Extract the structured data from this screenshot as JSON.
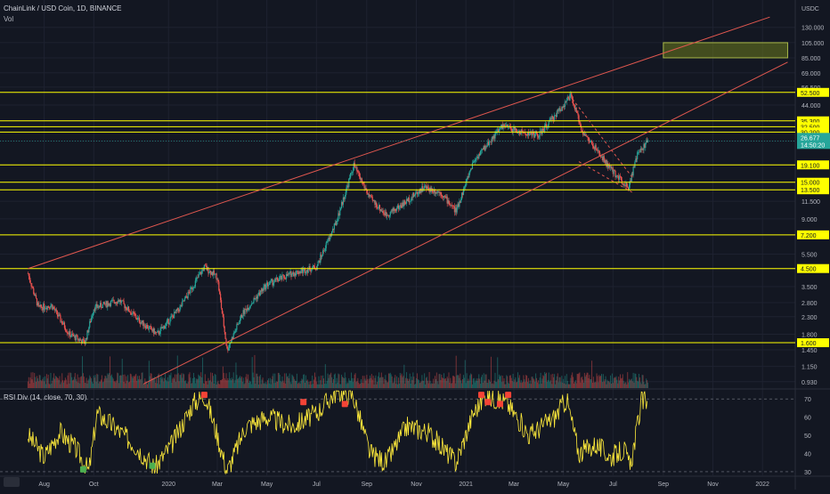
{
  "header": {
    "symbol_line": "ChainLink / USD Coin, 1D, BINANCE",
    "volume_label": "Vol",
    "currency": "USDC"
  },
  "colors": {
    "background": "#131722",
    "grid": "#1e2230",
    "up": "#26a69a",
    "down": "#ef5350",
    "horizontal_levels": "#ffff00",
    "channel": "#e0574f",
    "rsi": "#ffeb3b",
    "price_badge": "#26a69a",
    "target_zone": "#6b7a1e"
  },
  "chart_data": [
    {
      "type": "candlestick",
      "scale": "log",
      "ylim": [
        0.85,
        160
      ],
      "y_ticks": [
        "130.000",
        "105.000",
        "85.000",
        "69.000",
        "56.500",
        "44.000",
        "35.300",
        "30.200",
        "26.677",
        "19.100",
        "15.000",
        "11.500",
        "9.000",
        "7.200",
        "5.500",
        "4.500",
        "3.500",
        "2.800",
        "2.300",
        "1.800",
        "1.450",
        "1.150",
        "0.930"
      ],
      "x_ticks": [
        "Aug",
        "Oct",
        "2020",
        "Mar",
        "May",
        "Jul",
        "Sep",
        "Nov",
        "2021",
        "Mar",
        "May",
        "Jul",
        "Sep",
        "Nov",
        "2022"
      ],
      "date_range": [
        "2019-07-12",
        "2021-08-13"
      ],
      "price_path": [
        {
          "date": "2019-07-12",
          "close": 4.2
        },
        {
          "date": "2019-07-25",
          "close": 2.6
        },
        {
          "date": "2019-08-10",
          "close": 2.7
        },
        {
          "date": "2019-09-01",
          "close": 1.8
        },
        {
          "date": "2019-09-20",
          "close": 1.6
        },
        {
          "date": "2019-10-01",
          "close": 2.6
        },
        {
          "date": "2019-11-01",
          "close": 2.9
        },
        {
          "date": "2019-11-25",
          "close": 2.2
        },
        {
          "date": "2019-12-18",
          "close": 1.8
        },
        {
          "date": "2020-01-15",
          "close": 2.6
        },
        {
          "date": "2020-02-14",
          "close": 4.6
        },
        {
          "date": "2020-03-01",
          "close": 4.0
        },
        {
          "date": "2020-03-13",
          "close": 1.45
        },
        {
          "date": "2020-04-01",
          "close": 2.4
        },
        {
          "date": "2020-05-01",
          "close": 3.6
        },
        {
          "date": "2020-06-01",
          "close": 4.2
        },
        {
          "date": "2020-07-01",
          "close": 4.6
        },
        {
          "date": "2020-07-25",
          "close": 8.5
        },
        {
          "date": "2020-08-16",
          "close": 19.0
        },
        {
          "date": "2020-09-05",
          "close": 12.0
        },
        {
          "date": "2020-09-25",
          "close": 9.5
        },
        {
          "date": "2020-10-15",
          "close": 11.0
        },
        {
          "date": "2020-11-10",
          "close": 14.0
        },
        {
          "date": "2020-12-01",
          "close": 13.0
        },
        {
          "date": "2020-12-20",
          "close": 10.0
        },
        {
          "date": "2021-01-10",
          "close": 20.0
        },
        {
          "date": "2021-02-15",
          "close": 33.0
        },
        {
          "date": "2021-03-10",
          "close": 30.0
        },
        {
          "date": "2021-04-01",
          "close": 29.0
        },
        {
          "date": "2021-05-10",
          "close": 50.0
        },
        {
          "date": "2021-05-25",
          "close": 30.0
        },
        {
          "date": "2021-06-15",
          "close": 22.0
        },
        {
          "date": "2021-06-28",
          "close": 18.0
        },
        {
          "date": "2021-07-20",
          "close": 14.0
        },
        {
          "date": "2021-07-31",
          "close": 22.0
        },
        {
          "date": "2021-08-13",
          "close": 26.677
        }
      ],
      "horizontal_levels": [
        "52.500",
        "35.300",
        "32.500",
        "30.200",
        "19.100",
        "15.000",
        "13.500",
        "7.200",
        "4.500",
        "1.600"
      ],
      "current_price": {
        "value": "26.677",
        "countdown": "14:50:20"
      },
      "channel": {
        "upper": [
          {
            "date": "2019-07-12",
            "price": 4.5
          },
          {
            "date": "2022-01-10",
            "price": 150
          }
        ],
        "lower": [
          {
            "date": "2019-12-01",
            "price": 0.9
          },
          {
            "date": "2022-02-01",
            "price": 80
          }
        ]
      },
      "target_zone": {
        "date_from": "2021-09-01",
        "date_to": "2022-02-01",
        "price_from": 85,
        "price_to": 105
      },
      "falling_wedge": {
        "upper": [
          {
            "date": "2021-05-12",
            "price": 48
          },
          {
            "date": "2021-07-25",
            "price": 16
          }
        ],
        "lower": [
          {
            "date": "2021-05-20",
            "price": 20
          },
          {
            "date": "2021-07-25",
            "price": 13
          }
        ]
      }
    },
    {
      "type": "line",
      "name": "RSI Div",
      "label": "RSI Div (14, close, 70, 30)",
      "ylim": [
        28,
        75
      ],
      "y_ticks": [
        70,
        60,
        50,
        40,
        30
      ],
      "bands": [
        70,
        30
      ],
      "rsi_path": [
        {
          "date": "2019-07-12",
          "value": 50
        },
        {
          "date": "2019-08-01",
          "value": 38
        },
        {
          "date": "2019-08-20",
          "value": 52
        },
        {
          "date": "2019-09-10",
          "value": 42
        },
        {
          "date": "2019-09-25",
          "value": 30
        },
        {
          "date": "2019-10-05",
          "value": 62
        },
        {
          "date": "2019-10-25",
          "value": 55
        },
        {
          "date": "2019-11-20",
          "value": 45
        },
        {
          "date": "2019-12-15",
          "value": 32
        },
        {
          "date": "2020-01-05",
          "value": 45
        },
        {
          "date": "2020-02-01",
          "value": 68
        },
        {
          "date": "2020-02-15",
          "value": 72
        },
        {
          "date": "2020-03-01",
          "value": 50
        },
        {
          "date": "2020-03-13",
          "value": 30
        },
        {
          "date": "2020-04-05",
          "value": 55
        },
        {
          "date": "2020-05-01",
          "value": 60
        },
        {
          "date": "2020-06-01",
          "value": 55
        },
        {
          "date": "2020-07-01",
          "value": 62
        },
        {
          "date": "2020-07-25",
          "value": 74
        },
        {
          "date": "2020-08-15",
          "value": 72
        },
        {
          "date": "2020-09-05",
          "value": 40
        },
        {
          "date": "2020-09-25",
          "value": 35
        },
        {
          "date": "2020-10-20",
          "value": 55
        },
        {
          "date": "2020-11-15",
          "value": 52
        },
        {
          "date": "2020-12-20",
          "value": 35
        },
        {
          "date": "2021-01-10",
          "value": 62
        },
        {
          "date": "2021-01-25",
          "value": 72
        },
        {
          "date": "2021-02-20",
          "value": 68
        },
        {
          "date": "2021-03-20",
          "value": 50
        },
        {
          "date": "2021-04-20",
          "value": 60
        },
        {
          "date": "2021-05-05",
          "value": 70
        },
        {
          "date": "2021-05-20",
          "value": 40
        },
        {
          "date": "2021-06-10",
          "value": 45
        },
        {
          "date": "2021-06-28",
          "value": 38
        },
        {
          "date": "2021-07-15",
          "value": 42
        },
        {
          "date": "2021-07-22",
          "value": 32
        },
        {
          "date": "2021-08-05",
          "value": 68
        },
        {
          "date": "2021-08-13",
          "value": 70
        }
      ],
      "markers": [
        {
          "date": "2019-09-18",
          "value": 31,
          "kind": "bull"
        },
        {
          "date": "2019-12-12",
          "value": 33,
          "kind": "bull"
        },
        {
          "date": "2020-02-14",
          "value": 72,
          "kind": "bear"
        },
        {
          "date": "2020-06-15",
          "value": 68,
          "kind": "bear"
        },
        {
          "date": "2020-08-05",
          "value": 67,
          "kind": "bear"
        },
        {
          "date": "2021-01-20",
          "value": 72,
          "kind": "bear"
        },
        {
          "date": "2021-01-28",
          "value": 68,
          "kind": "bear"
        },
        {
          "date": "2021-02-12",
          "value": 67,
          "kind": "bear"
        },
        {
          "date": "2021-02-22",
          "value": 72,
          "kind": "bear"
        }
      ]
    }
  ]
}
